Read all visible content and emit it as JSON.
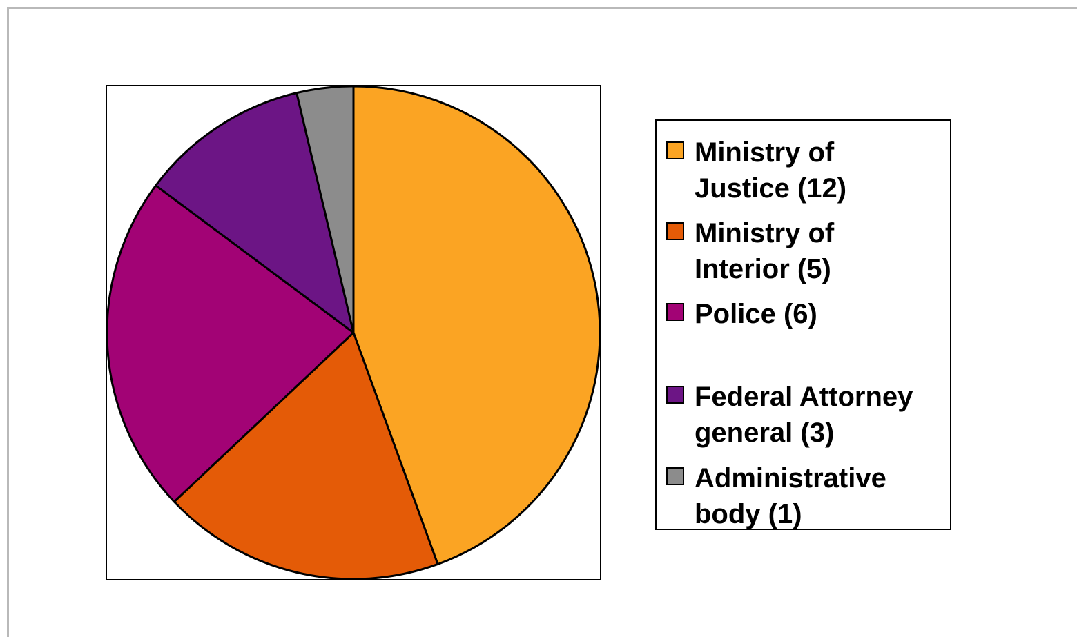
{
  "chart_data": {
    "type": "pie",
    "title": "",
    "slices": [
      {
        "label": "Ministry of Justice  (12)",
        "value": 12,
        "color": "#fba423"
      },
      {
        "label": "Ministry of Interior  (5)",
        "value": 5,
        "color": "#e45b07"
      },
      {
        "label": "Police  (6)",
        "value": 6,
        "color": "#a20375"
      },
      {
        "label": "Federal Attorney general  (3)",
        "value": 3,
        "color": "#6c1585"
      },
      {
        "label": "Administrative body  (1)",
        "value": 1,
        "color": "#8c8c8c"
      }
    ],
    "legend_placement": "right",
    "legend_labels": [
      "Ministry of\nJustice  (12)",
      "Ministry of\nInterior  (5)",
      "Police  (6)",
      "Federal Attorney\ngeneral  (3)",
      "Administrative\nbody  (1)"
    ]
  }
}
